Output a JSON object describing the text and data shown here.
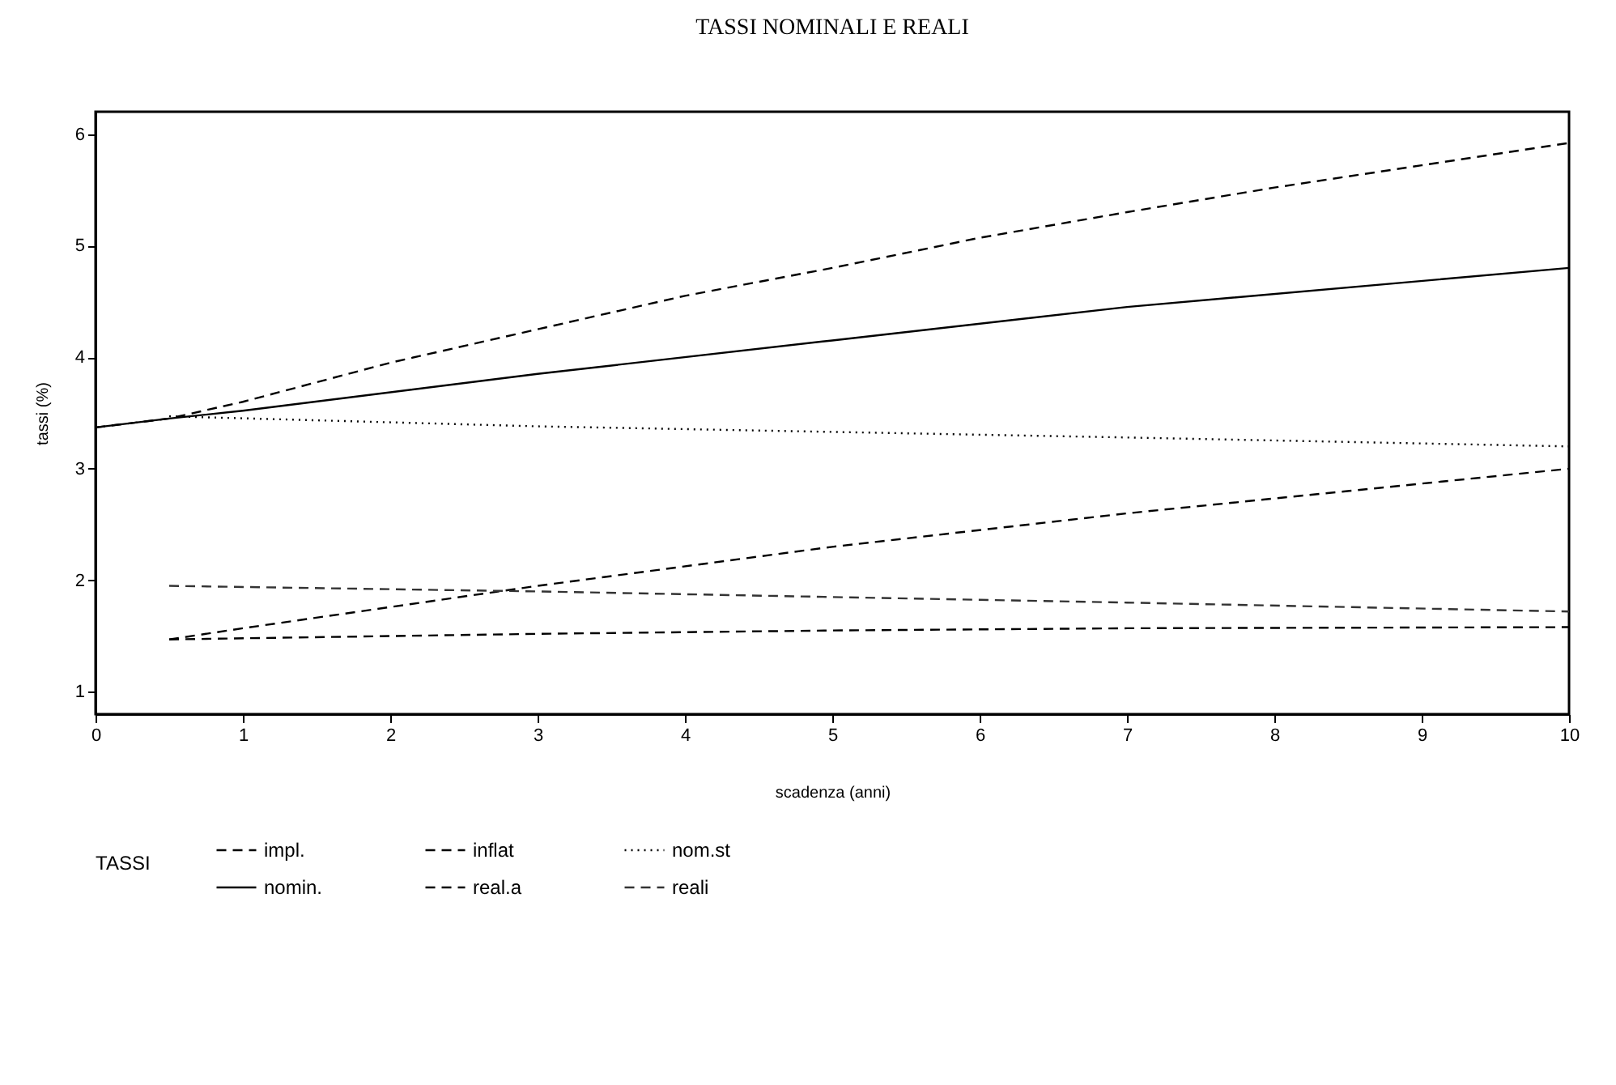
{
  "chart_data": {
    "type": "line",
    "title": "TASSI NOMINALI E REALI",
    "xlabel": "scadenza (anni)",
    "ylabel": "tassi (%)",
    "legend_title": "TASSI",
    "legend": "bottom",
    "grid": false,
    "xlim": [
      0,
      10
    ],
    "xticks": [
      0,
      1,
      2,
      3,
      4,
      5,
      6,
      7,
      8,
      9,
      10
    ],
    "ylim": [
      0.8,
      6.2
    ],
    "yticks": [
      1,
      2,
      3,
      4,
      5,
      6
    ],
    "series": [
      {
        "name": "impl.",
        "color": "#000000",
        "line_style": "dashed",
        "x": [
          0,
          0.5,
          1,
          2,
          3,
          4,
          5,
          6,
          7,
          8,
          9,
          10
        ],
        "values": [
          3.37,
          3.45,
          3.6,
          3.95,
          4.25,
          4.55,
          4.8,
          5.07,
          5.3,
          5.52,
          5.72,
          5.92
        ]
      },
      {
        "name": "inflat",
        "color": "#000000",
        "line_style": "dashed",
        "x": [
          0.5,
          1,
          3,
          5,
          7,
          10
        ],
        "values": [
          1.47,
          1.57,
          1.95,
          2.3,
          2.6,
          3.0
        ]
      },
      {
        "name": "nom.st",
        "color": "#000000",
        "line_style": "dotted",
        "x": [
          0.5,
          3,
          5,
          7,
          10
        ],
        "values": [
          3.47,
          3.38,
          3.33,
          3.28,
          3.2
        ]
      },
      {
        "name": "nomin.",
        "color": "#000000",
        "line_style": "solid",
        "x": [
          0,
          0.5,
          1,
          3,
          5,
          7,
          10
        ],
        "values": [
          3.37,
          3.45,
          3.52,
          3.85,
          4.15,
          4.45,
          4.8
        ]
      },
      {
        "name": "real.a",
        "color": "#000000",
        "line_style": "dashed",
        "x": [
          0.5,
          3,
          5,
          7,
          10
        ],
        "values": [
          1.47,
          1.52,
          1.55,
          1.57,
          1.58
        ]
      },
      {
        "name": "reali",
        "color": "#333333",
        "line_style": "dashed",
        "x": [
          0.5,
          3,
          5,
          7,
          10
        ],
        "values": [
          1.95,
          1.9,
          1.85,
          1.8,
          1.72
        ]
      }
    ]
  }
}
